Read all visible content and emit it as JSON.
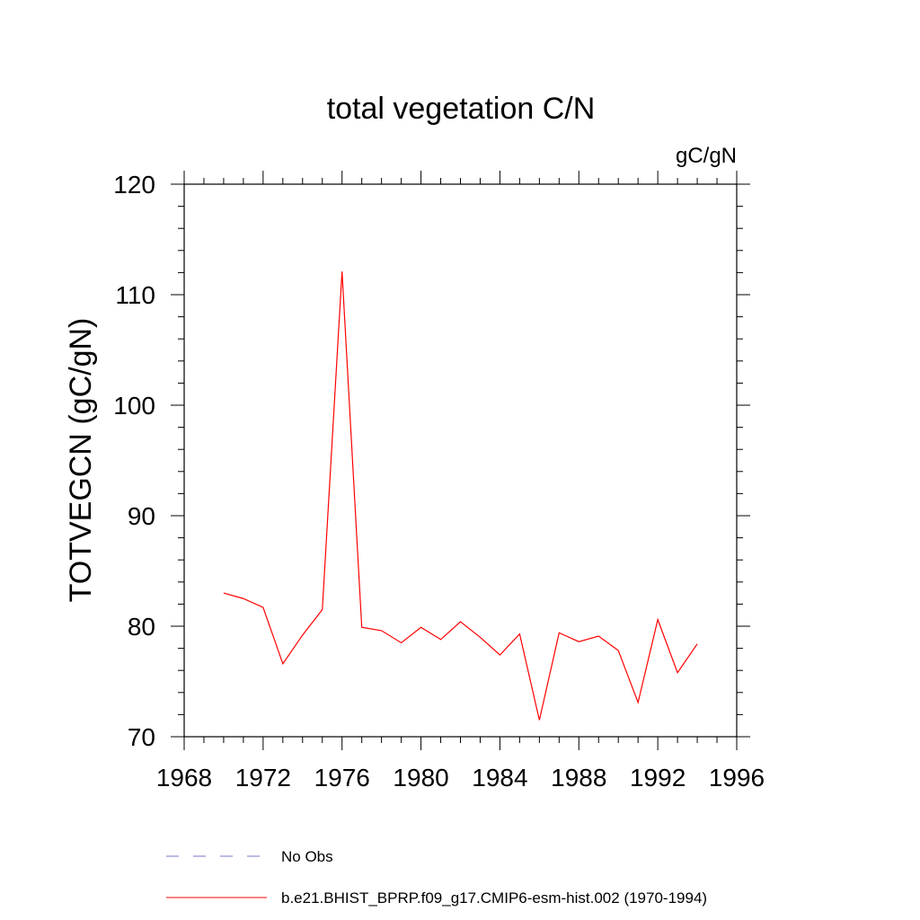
{
  "chart_data": {
    "type": "line",
    "title": "total vegetation C/N",
    "units_label": "gC/gN",
    "ylabel": "TOTVEGCN  (gC/gN)",
    "xlabel": "",
    "xlim": [
      1968,
      1996
    ],
    "ylim": [
      70,
      120
    ],
    "x_major_ticks": [
      1968,
      1972,
      1976,
      1980,
      1984,
      1988,
      1992,
      1996
    ],
    "x_tick_labels": [
      "1968",
      "1972",
      "1976",
      "1980",
      "1984",
      "1988",
      "1992",
      "1996"
    ],
    "y_major_ticks": [
      70,
      80,
      90,
      100,
      110,
      120
    ],
    "y_tick_labels": [
      "70",
      "80",
      "90",
      "100",
      "110",
      "120"
    ],
    "grid": false,
    "legend_position": "bottom",
    "series": [
      {
        "name": "b.e21.BHIST_BPRP.f09_g17.CMIP6-esm-hist.002 (1970-1994)",
        "color": "#ff0000",
        "line_style": "solid",
        "x": [
          1970,
          1971,
          1972,
          1973,
          1974,
          1975,
          1976,
          1977,
          1978,
          1979,
          1980,
          1981,
          1982,
          1983,
          1984,
          1985,
          1986,
          1987,
          1988,
          1989,
          1990,
          1991,
          1992,
          1993,
          1994
        ],
        "values": [
          83.0,
          82.5,
          81.7,
          76.6,
          79.2,
          81.5,
          112.1,
          79.9,
          79.6,
          78.5,
          79.9,
          78.8,
          80.4,
          79.0,
          77.4,
          79.3,
          71.5,
          79.4,
          78.6,
          79.1,
          77.8,
          73.1,
          80.6,
          75.8,
          78.4
        ]
      }
    ],
    "legend": [
      {
        "label": "No Obs",
        "color": "#7777cc",
        "line_style": "dashed"
      },
      {
        "label": "b.e21.BHIST_BPRP.f09_g17.CMIP6-esm-hist.002 (1970-1994)",
        "color": "#ff0000",
        "line_style": "solid"
      }
    ]
  }
}
